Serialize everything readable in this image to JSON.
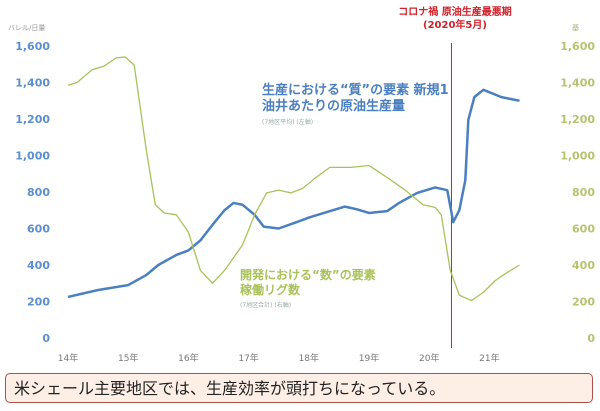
{
  "chart_data": {
    "type": "line",
    "left_axis_unit": "バレル/日量",
    "right_axis_unit": "基",
    "ylim": [
      0,
      1600
    ],
    "y_ticks": [
      "0",
      "200",
      "400",
      "600",
      "800",
      "1,000",
      "1,200",
      "1,400",
      "1,600"
    ],
    "x_ticks": [
      "14年",
      "15年",
      "16年",
      "17年",
      "18年",
      "19年",
      "20年",
      "21年"
    ],
    "x_tick_values": [
      2014,
      2015,
      2016,
      2017,
      2018,
      2019,
      2020,
      2021
    ],
    "grid": false,
    "series": [
      {
        "name": "生産における“質”の要素 新規1油井あたりの原油生産量",
        "caption": "(7地区平均) (左軸)",
        "axis": "left",
        "color": "#4a7fc1",
        "x": [
          2014.0,
          2014.5,
          2015.0,
          2015.3,
          2015.5,
          2015.8,
          2016.0,
          2016.2,
          2016.4,
          2016.6,
          2016.75,
          2016.9,
          2017.1,
          2017.25,
          2017.5,
          2017.8,
          2018.0,
          2018.3,
          2018.6,
          2018.8,
          2019.0,
          2019.3,
          2019.5,
          2019.8,
          2020.1,
          2020.3,
          2020.4,
          2020.5,
          2020.6,
          2020.65,
          2020.75,
          2020.9,
          2021.2,
          2021.5
        ],
        "y": [
          225,
          263,
          290,
          345,
          400,
          455,
          480,
          535,
          620,
          700,
          740,
          730,
          675,
          610,
          600,
          635,
          660,
          690,
          720,
          705,
          685,
          695,
          740,
          795,
          825,
          810,
          635,
          700,
          865,
          1195,
          1320,
          1360,
          1320,
          1300
        ]
      },
      {
        "name": "開発における“数”の要素 稼働リグ数",
        "caption": "(7地区合計) (右軸)",
        "axis": "right",
        "color": "#a9c25a",
        "x": [
          2014.0,
          2014.15,
          2014.4,
          2014.6,
          2014.8,
          2014.95,
          2015.1,
          2015.3,
          2015.45,
          2015.6,
          2015.8,
          2016.0,
          2016.2,
          2016.4,
          2016.6,
          2016.9,
          2017.1,
          2017.3,
          2017.5,
          2017.7,
          2017.9,
          2018.1,
          2018.35,
          2018.7,
          2019.0,
          2019.3,
          2019.6,
          2019.9,
          2020.1,
          2020.2,
          2020.35,
          2020.5,
          2020.7,
          2020.9,
          2021.1,
          2021.3,
          2021.5
        ],
        "y": [
          1385,
          1400,
          1470,
          1490,
          1535,
          1540,
          1495,
          1030,
          730,
          685,
          675,
          580,
          370,
          300,
          370,
          510,
          675,
          795,
          810,
          795,
          820,
          875,
          935,
          935,
          945,
          880,
          810,
          730,
          715,
          675,
          370,
          235,
          205,
          250,
          315,
          360,
          400
        ]
      }
    ],
    "annotation": {
      "title": "コロナ禍 原油生産最悪期",
      "subtitle": "(2020年5月)",
      "x": 2020.37,
      "color": "#d0202a"
    }
  },
  "caption": "米シェール主要地区では、生産効率が頭打ちになっている。"
}
